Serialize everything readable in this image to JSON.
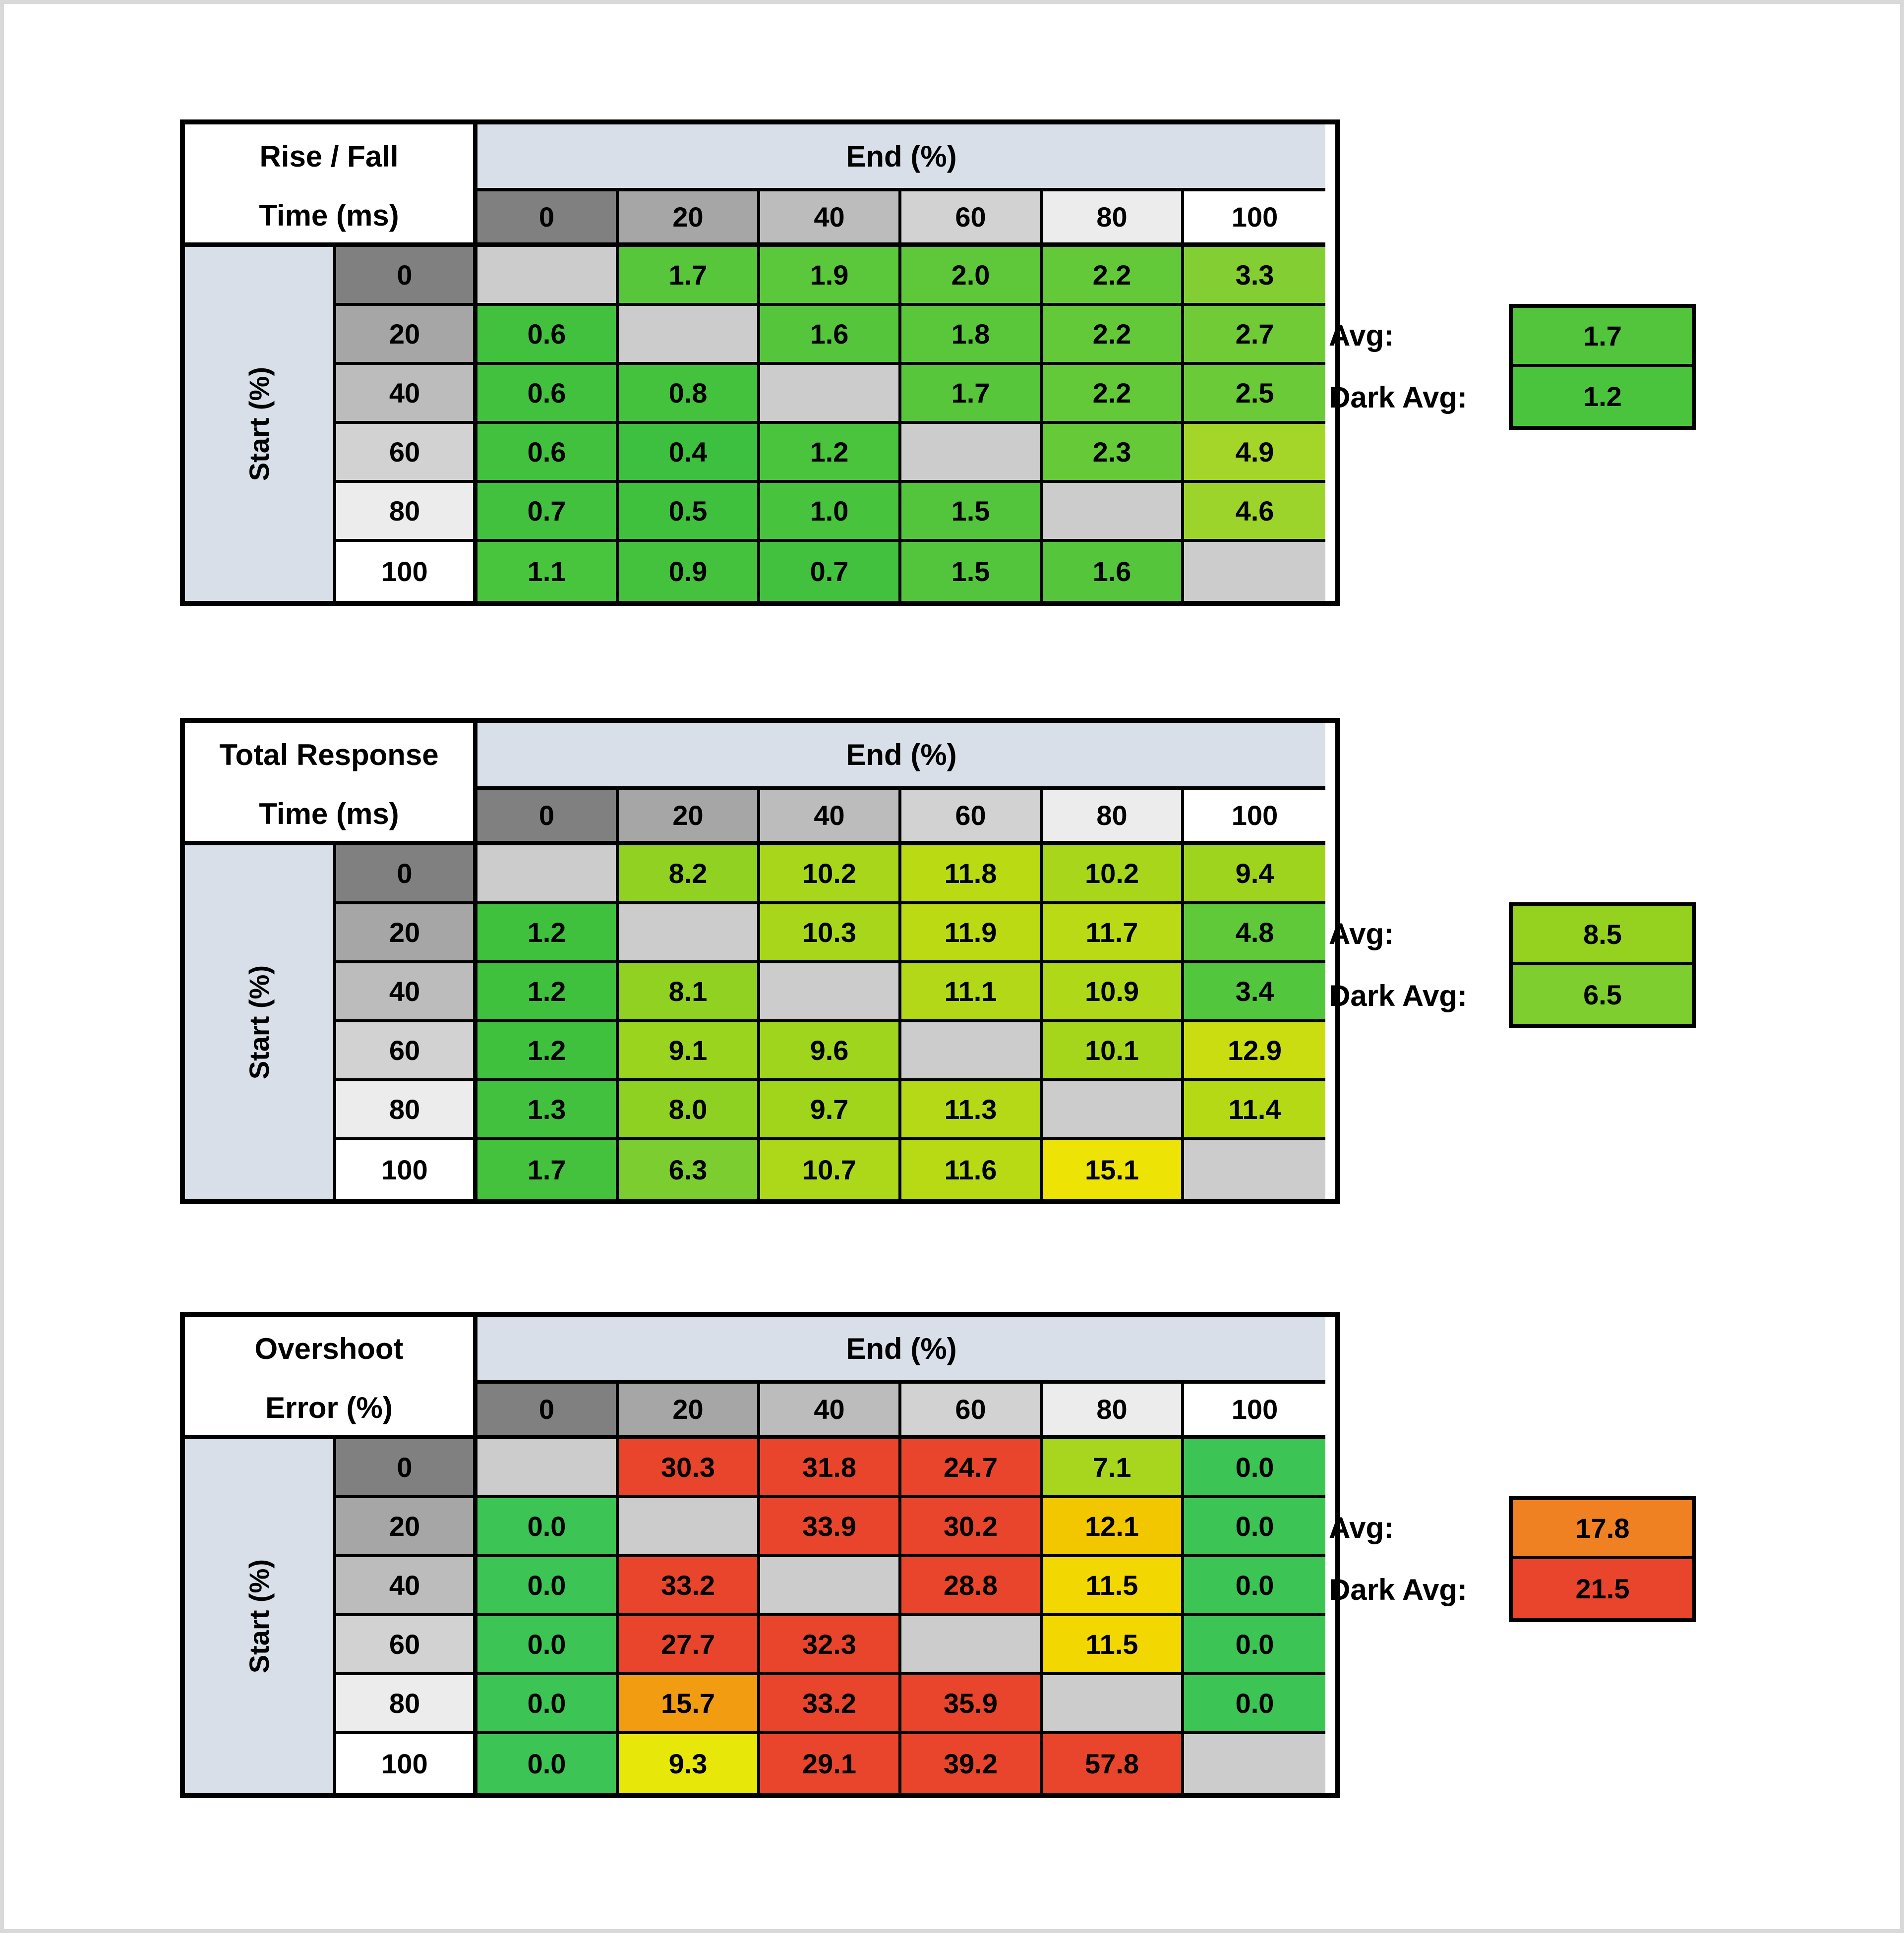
{
  "shared": {
    "end_header": "End (%)",
    "start_label": "Start (%)",
    "col_headers": [
      "0",
      "20",
      "40",
      "60",
      "80",
      "100"
    ],
    "row_headers": [
      "0",
      "20",
      "40",
      "60",
      "80",
      "100"
    ],
    "avg_label": "Avg:",
    "dark_avg_label": "Dark Avg:",
    "colors": {
      "band": "#d9dfe8",
      "diagonal": "#cccccc",
      "header_grays": [
        "#808080",
        "#a6a6a6",
        "#bcbcbc",
        "#d2d2d2",
        "#ececec",
        "#ffffff"
      ],
      "border": "#000000",
      "page_frame": "#d9d9d9"
    }
  },
  "tables": [
    {
      "id": "rise-fall",
      "title_line1": "Rise / Fall",
      "title_line2": "Time (ms)",
      "avg": {
        "value": "1.7",
        "color": "#53c53c"
      },
      "dark_avg": {
        "value": "1.2",
        "color": "#4ac43d"
      },
      "rows": [
        [
          null,
          {
            "v": "1.7",
            "c": "#57c63b"
          },
          {
            "v": "1.9",
            "c": "#5bc73b"
          },
          {
            "v": "2.0",
            "c": "#5ec83a"
          },
          {
            "v": "2.2",
            "c": "#63c939"
          },
          {
            "v": "3.3",
            "c": "#82ce33"
          }
        ],
        [
          {
            "v": "0.6",
            "c": "#41c13e"
          },
          null,
          {
            "v": "1.6",
            "c": "#55c63c"
          },
          {
            "v": "1.8",
            "c": "#5ac73b"
          },
          {
            "v": "2.2",
            "c": "#63c939"
          },
          {
            "v": "2.7",
            "c": "#70cb36"
          }
        ],
        [
          {
            "v": "0.6",
            "c": "#41c13e"
          },
          {
            "v": "0.8",
            "c": "#44c23d"
          },
          null,
          {
            "v": "1.7",
            "c": "#57c63b"
          },
          {
            "v": "2.2",
            "c": "#63c939"
          },
          {
            "v": "2.5",
            "c": "#6bca37"
          }
        ],
        [
          {
            "v": "0.6",
            "c": "#41c13e"
          },
          {
            "v": "0.4",
            "c": "#3dc03f"
          },
          {
            "v": "1.2",
            "c": "#4bc43d"
          },
          null,
          {
            "v": "2.3",
            "c": "#65c938"
          },
          {
            "v": "4.9",
            "c": "#a4d529"
          }
        ],
        [
          {
            "v": "0.7",
            "c": "#42c13e"
          },
          {
            "v": "0.5",
            "c": "#3fc13e"
          },
          {
            "v": "1.0",
            "c": "#47c33d"
          },
          {
            "v": "1.5",
            "c": "#53c53c"
          },
          null,
          {
            "v": "4.6",
            "c": "#9dd42b"
          }
        ],
        [
          {
            "v": "1.1",
            "c": "#49c43d"
          },
          {
            "v": "0.9",
            "c": "#45c23d"
          },
          {
            "v": "0.7",
            "c": "#42c13e"
          },
          {
            "v": "1.5",
            "c": "#53c53c"
          },
          {
            "v": "1.6",
            "c": "#55c63c"
          },
          null
        ]
      ]
    },
    {
      "id": "total-response",
      "title_line1": "Total Response",
      "title_line2": "Time (ms)",
      "avg": {
        "value": "8.5",
        "color": "#95d220"
      },
      "dark_avg": {
        "value": "6.5",
        "color": "#7ece2f"
      },
      "rows": [
        [
          null,
          {
            "v": "8.2",
            "c": "#91d121"
          },
          {
            "v": "10.2",
            "c": "#a7d61b"
          },
          {
            "v": "11.8",
            "c": "#bada14"
          },
          {
            "v": "10.2",
            "c": "#a7d61b"
          },
          {
            "v": "9.4",
            "c": "#9ed41d"
          }
        ],
        [
          {
            "v": "1.2",
            "c": "#40c13e"
          },
          null,
          {
            "v": "10.3",
            "c": "#a8d61a"
          },
          {
            "v": "11.9",
            "c": "#bbda14"
          },
          {
            "v": "11.7",
            "c": "#b9da15"
          },
          {
            "v": "4.8",
            "c": "#5fc93a"
          }
        ],
        [
          {
            "v": "1.2",
            "c": "#40c13e"
          },
          {
            "v": "8.1",
            "c": "#90d122"
          },
          null,
          {
            "v": "11.1",
            "c": "#b2d817"
          },
          {
            "v": "10.9",
            "c": "#afd818"
          },
          {
            "v": "3.4",
            "c": "#52c63c"
          }
        ],
        [
          {
            "v": "1.2",
            "c": "#40c13e"
          },
          {
            "v": "9.1",
            "c": "#9bd41e"
          },
          {
            "v": "9.6",
            "c": "#a0d51d"
          },
          null,
          {
            "v": "10.1",
            "c": "#a6d61b"
          },
          {
            "v": "12.9",
            "c": "#c9dd10"
          }
        ],
        [
          {
            "v": "1.3",
            "c": "#41c13e"
          },
          {
            "v": "8.0",
            "c": "#8fd122"
          },
          {
            "v": "9.7",
            "c": "#a1d51c"
          },
          {
            "v": "11.3",
            "c": "#b5d916"
          },
          null,
          {
            "v": "11.4",
            "c": "#b6d916"
          }
        ],
        [
          {
            "v": "1.7",
            "c": "#44c23d"
          },
          {
            "v": "6.3",
            "c": "#7cce30"
          },
          {
            "v": "10.7",
            "c": "#add719"
          },
          {
            "v": "11.6",
            "c": "#b8da15"
          },
          {
            "v": "15.1",
            "c": "#ede405"
          },
          null
        ]
      ]
    },
    {
      "id": "overshoot",
      "title_line1": "Overshoot",
      "title_line2": "Error (%)",
      "avg": {
        "value": "17.8",
        "color": "#f08122"
      },
      "dark_avg": {
        "value": "21.5",
        "color": "#e9452c"
      },
      "rows": [
        [
          null,
          {
            "v": "30.3",
            "c": "#e9452c"
          },
          {
            "v": "31.8",
            "c": "#e9452c"
          },
          {
            "v": "24.7",
            "c": "#e9452c"
          },
          {
            "v": "7.1",
            "c": "#a8d61e"
          },
          {
            "v": "0.0",
            "c": "#3cc454"
          }
        ],
        [
          {
            "v": "0.0",
            "c": "#3cc454"
          },
          null,
          {
            "v": "33.9",
            "c": "#e9452c"
          },
          {
            "v": "30.2",
            "c": "#e9452c"
          },
          {
            "v": "12.1",
            "c": "#f2c700"
          },
          {
            "v": "0.0",
            "c": "#3cc454"
          }
        ],
        [
          {
            "v": "0.0",
            "c": "#3cc454"
          },
          {
            "v": "33.2",
            "c": "#e9452c"
          },
          null,
          {
            "v": "28.8",
            "c": "#e9452c"
          },
          {
            "v": "11.5",
            "c": "#f2d800"
          },
          {
            "v": "0.0",
            "c": "#3cc454"
          }
        ],
        [
          {
            "v": "0.0",
            "c": "#3cc454"
          },
          {
            "v": "27.7",
            "c": "#e9452c"
          },
          {
            "v": "32.3",
            "c": "#e9452c"
          },
          null,
          {
            "v": "11.5",
            "c": "#f2d800"
          },
          {
            "v": "0.0",
            "c": "#3cc454"
          }
        ],
        [
          {
            "v": "0.0",
            "c": "#3cc454"
          },
          {
            "v": "15.7",
            "c": "#f29c12"
          },
          {
            "v": "33.2",
            "c": "#e9452c"
          },
          {
            "v": "35.9",
            "c": "#e9452c"
          },
          null,
          {
            "v": "0.0",
            "c": "#3cc454"
          }
        ],
        [
          {
            "v": "0.0",
            "c": "#3cc454"
          },
          {
            "v": "9.3",
            "c": "#e7e70a"
          },
          {
            "v": "29.1",
            "c": "#e9452c"
          },
          {
            "v": "39.2",
            "c": "#e9452c"
          },
          {
            "v": "57.8",
            "c": "#e9452c"
          },
          null
        ]
      ]
    }
  ],
  "chart_data": [
    {
      "type": "heatmap",
      "title": "Rise / Fall Time (ms)",
      "xlabel": "End (%)",
      "ylabel": "Start (%)",
      "x": [
        0,
        20,
        40,
        60,
        80,
        100
      ],
      "y": [
        0,
        20,
        40,
        60,
        80,
        100
      ],
      "values": [
        [
          null,
          1.7,
          1.9,
          2.0,
          2.2,
          3.3
        ],
        [
          0.6,
          null,
          1.6,
          1.8,
          2.2,
          2.7
        ],
        [
          0.6,
          0.8,
          null,
          1.7,
          2.2,
          2.5
        ],
        [
          0.6,
          0.4,
          1.2,
          null,
          2.3,
          4.9
        ],
        [
          0.7,
          0.5,
          1.0,
          1.5,
          null,
          4.6
        ],
        [
          1.1,
          0.9,
          0.7,
          1.5,
          1.6,
          null
        ]
      ],
      "avg": 1.7,
      "dark_avg": 1.2
    },
    {
      "type": "heatmap",
      "title": "Total Response Time (ms)",
      "xlabel": "End (%)",
      "ylabel": "Start (%)",
      "x": [
        0,
        20,
        40,
        60,
        80,
        100
      ],
      "y": [
        0,
        20,
        40,
        60,
        80,
        100
      ],
      "values": [
        [
          null,
          8.2,
          10.2,
          11.8,
          10.2,
          9.4
        ],
        [
          1.2,
          null,
          10.3,
          11.9,
          11.7,
          4.8
        ],
        [
          1.2,
          8.1,
          null,
          11.1,
          10.9,
          3.4
        ],
        [
          1.2,
          9.1,
          9.6,
          null,
          10.1,
          12.9
        ],
        [
          1.3,
          8.0,
          9.7,
          11.3,
          null,
          11.4
        ],
        [
          1.7,
          6.3,
          10.7,
          11.6,
          15.1,
          null
        ]
      ],
      "avg": 8.5,
      "dark_avg": 6.5
    },
    {
      "type": "heatmap",
      "title": "Overshoot Error (%)",
      "xlabel": "End (%)",
      "ylabel": "Start (%)",
      "x": [
        0,
        20,
        40,
        60,
        80,
        100
      ],
      "y": [
        0,
        20,
        40,
        60,
        80,
        100
      ],
      "values": [
        [
          null,
          30.3,
          31.8,
          24.7,
          7.1,
          0.0
        ],
        [
          0.0,
          null,
          33.9,
          30.2,
          12.1,
          0.0
        ],
        [
          0.0,
          33.2,
          null,
          28.8,
          11.5,
          0.0
        ],
        [
          0.0,
          27.7,
          32.3,
          null,
          11.5,
          0.0
        ],
        [
          0.0,
          15.7,
          33.2,
          35.9,
          null,
          0.0
        ],
        [
          0.0,
          9.3,
          29.1,
          39.2,
          57.8,
          null
        ]
      ],
      "avg": 17.8,
      "dark_avg": 21.5
    }
  ],
  "layout": {
    "table_tops": [
      233,
      1440,
      2638
    ]
  }
}
